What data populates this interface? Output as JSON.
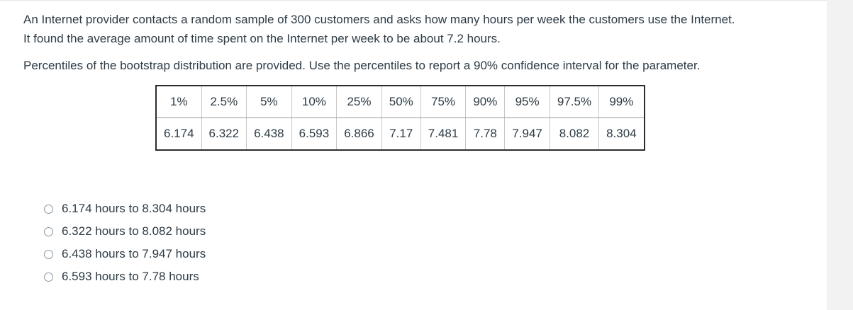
{
  "question": {
    "paragraph1_line1": "An Internet provider contacts a random sample of 300 customers and asks how many hours per week the customers use the Internet.",
    "paragraph1_line2": "It found the average amount of time spent on the Internet per week to be about 7.2 hours.",
    "paragraph2": "Percentiles of the bootstrap distribution are provided. Use the percentiles to report a 90% confidence interval for the parameter."
  },
  "table": {
    "headers": [
      "1%",
      "2.5%",
      "5%",
      "10%",
      "25%",
      "50%",
      "75%",
      "90%",
      "95%",
      "97.5%",
      "99%"
    ],
    "values": [
      "6.174",
      "6.322",
      "6.438",
      "6.593",
      "6.866",
      "7.17",
      "7.481",
      "7.78",
      "7.947",
      "8.082",
      "8.304"
    ]
  },
  "options": [
    {
      "label": "6.174 hours to 8.304 hours"
    },
    {
      "label": "6.322 hours to 8.082 hours"
    },
    {
      "label": "6.438 hours to 7.947 hours"
    },
    {
      "label": "6.593 hours to 7.78 hours"
    }
  ]
}
